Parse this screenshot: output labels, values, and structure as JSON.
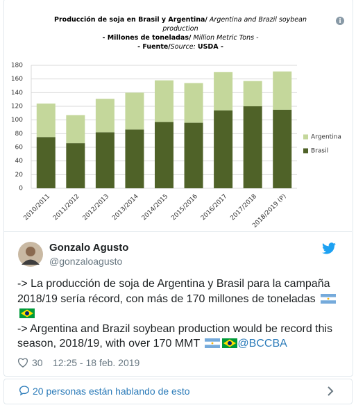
{
  "chart_data": {
    "type": "stacked-bar",
    "title": "Producción de soja en Brasil y Argentina/",
    "title_en": "Argentina and Brazil soybean production",
    "subtitle": "- Millones de toneladas/",
    "subtitle_en": "Million Metric Tons -",
    "source_pre": "- Fuente/",
    "source_en": "Source:",
    "source": "USDA -",
    "categories": [
      "2010/2011",
      "2011/2012",
      "2012/2013",
      "2013/2014",
      "2014/2015",
      "2015/2016",
      "2016/2017",
      "2017/2018",
      "2018/2019 (P)"
    ],
    "series": [
      {
        "name": "Brasil",
        "color": "#4f6228",
        "values": [
          75,
          66,
          82,
          86,
          97,
          96,
          114,
          120,
          115
        ]
      },
      {
        "name": "Argentina",
        "color": "#c4d79b",
        "values": [
          49,
          41,
          49,
          54,
          61,
          58,
          56,
          37,
          56
        ]
      }
    ],
    "ylim": [
      0,
      180
    ],
    "yticks": [
      0,
      20,
      40,
      60,
      80,
      100,
      120,
      140,
      160,
      180
    ],
    "grid": true
  },
  "tweet": {
    "name": "Gonzalo Agusto",
    "handle": "@gonzaloagusto",
    "text_1": "-> La producción de soja de Argentina y Brasil para la campaña 2018/19 sería récord, con más de 170 millones de toneladas",
    "text_2": "-> Argentina and Brazil soybean production would be record this season, 2018/19, with over 170 MMT",
    "mention": "@BCCBA",
    "likes": 30,
    "time": "12:25 - 18 feb. 2019",
    "conversation": "20 personas están hablando de esto"
  }
}
